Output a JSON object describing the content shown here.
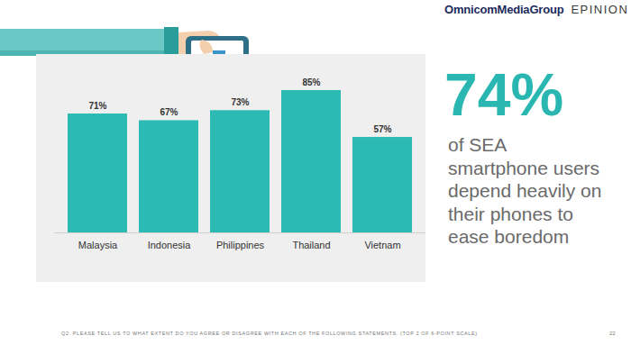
{
  "header": {
    "logo": "OmnicomMediaGroup",
    "partner": "EPINION"
  },
  "chart_data": {
    "type": "bar",
    "categories": [
      "Malaysia",
      "Indonesia",
      "Philippines",
      "Thailand",
      "Vietnam"
    ],
    "values": [
      71,
      67,
      73,
      85,
      57
    ],
    "value_labels": [
      "71%",
      "67%",
      "73%",
      "85%",
      "57%"
    ],
    "color": "#2bbab4",
    "data_labels": true,
    "tick_labels": "x"
  },
  "callout": {
    "figure": "74%",
    "lines": [
      "of SEA",
      "smartphone users",
      "depend heavily on",
      "their phones to",
      "ease boredom"
    ]
  },
  "footer": {
    "note": "Q2. PLEASE TELL US TO WHAT EXTENT DO YOU AGREE OR DISAGREE WITH EACH OF THE FOLLOWING STATEMENTS. (TOP 2 OF 6-POINT SCALE)",
    "page": "22"
  }
}
